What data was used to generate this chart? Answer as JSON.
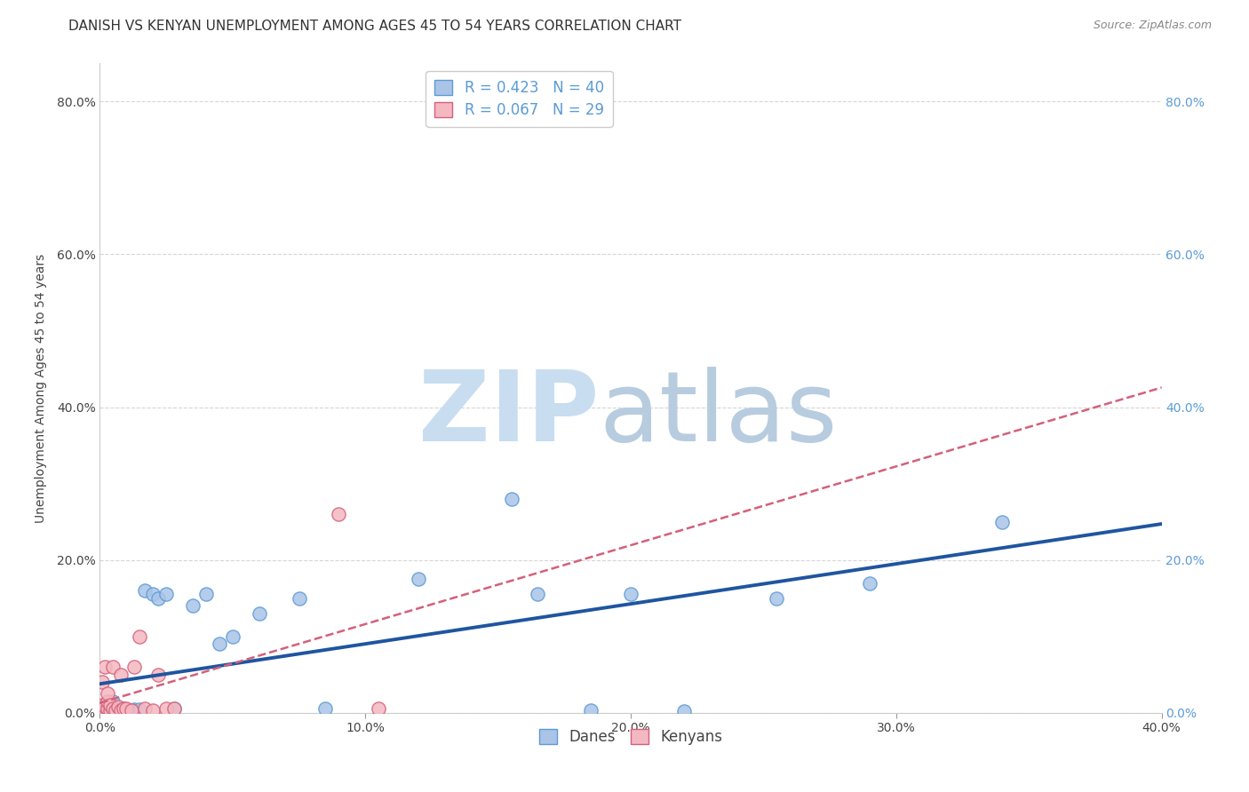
{
  "title": "DANISH VS KENYAN UNEMPLOYMENT AMONG AGES 45 TO 54 YEARS CORRELATION CHART",
  "source": "Source: ZipAtlas.com",
  "ylabel": "Unemployment Among Ages 45 to 54 years",
  "xlim": [
    0.0,
    0.4
  ],
  "ylim": [
    0.0,
    0.85
  ],
  "xticks": [
    0.0,
    0.1,
    0.2,
    0.3,
    0.4
  ],
  "yticks": [
    0.0,
    0.2,
    0.4,
    0.6,
    0.8
  ],
  "background_color": "#ffffff",
  "danes_color": "#aac4e8",
  "danes_edge_color": "#5b9bd5",
  "kenyans_color": "#f4b8c1",
  "kenyans_edge_color": "#d4607a",
  "danes_line_color": "#1f55a0",
  "kenyans_line_color": "#d4607a",
  "grid_color": "#cccccc",
  "watermark_ZIP_color": "#c8ddf0",
  "watermark_atlas_color": "#b8ccdf",
  "legend_R_danes": "R = 0.423",
  "legend_N_danes": "N = 40",
  "legend_R_kenyans": "R = 0.067",
  "legend_N_kenyans": "N = 29",
  "danes_x": [
    0.001,
    0.001,
    0.002,
    0.002,
    0.003,
    0.003,
    0.004,
    0.004,
    0.005,
    0.005,
    0.005,
    0.006,
    0.007,
    0.008,
    0.009,
    0.01,
    0.011,
    0.013,
    0.015,
    0.017,
    0.02,
    0.022,
    0.025,
    0.028,
    0.035,
    0.04,
    0.045,
    0.05,
    0.06,
    0.075,
    0.085,
    0.12,
    0.155,
    0.165,
    0.185,
    0.2,
    0.22,
    0.255,
    0.29,
    0.34
  ],
  "danes_y": [
    0.005,
    0.008,
    0.003,
    0.01,
    0.005,
    0.012,
    0.004,
    0.008,
    0.003,
    0.007,
    0.015,
    0.004,
    0.006,
    0.003,
    0.005,
    0.004,
    0.003,
    0.004,
    0.004,
    0.16,
    0.155,
    0.15,
    0.155,
    0.005,
    0.14,
    0.155,
    0.09,
    0.1,
    0.13,
    0.15,
    0.005,
    0.175,
    0.28,
    0.155,
    0.003,
    0.155,
    0.002,
    0.15,
    0.17,
    0.25
  ],
  "kenyans_x": [
    0.001,
    0.001,
    0.001,
    0.002,
    0.002,
    0.002,
    0.003,
    0.003,
    0.003,
    0.004,
    0.004,
    0.005,
    0.005,
    0.006,
    0.007,
    0.008,
    0.008,
    0.009,
    0.01,
    0.012,
    0.013,
    0.015,
    0.017,
    0.02,
    0.022,
    0.025,
    0.028,
    0.09,
    0.105
  ],
  "kenyans_y": [
    0.005,
    0.01,
    0.04,
    0.003,
    0.008,
    0.06,
    0.005,
    0.015,
    0.025,
    0.003,
    0.01,
    0.005,
    0.06,
    0.003,
    0.008,
    0.003,
    0.05,
    0.005,
    0.005,
    0.003,
    0.06,
    0.1,
    0.005,
    0.003,
    0.05,
    0.005,
    0.005,
    0.26,
    0.005
  ],
  "title_fontsize": 11,
  "source_fontsize": 9,
  "axis_label_fontsize": 10,
  "tick_fontsize": 10,
  "legend_fontsize": 12,
  "marker_size": 120
}
